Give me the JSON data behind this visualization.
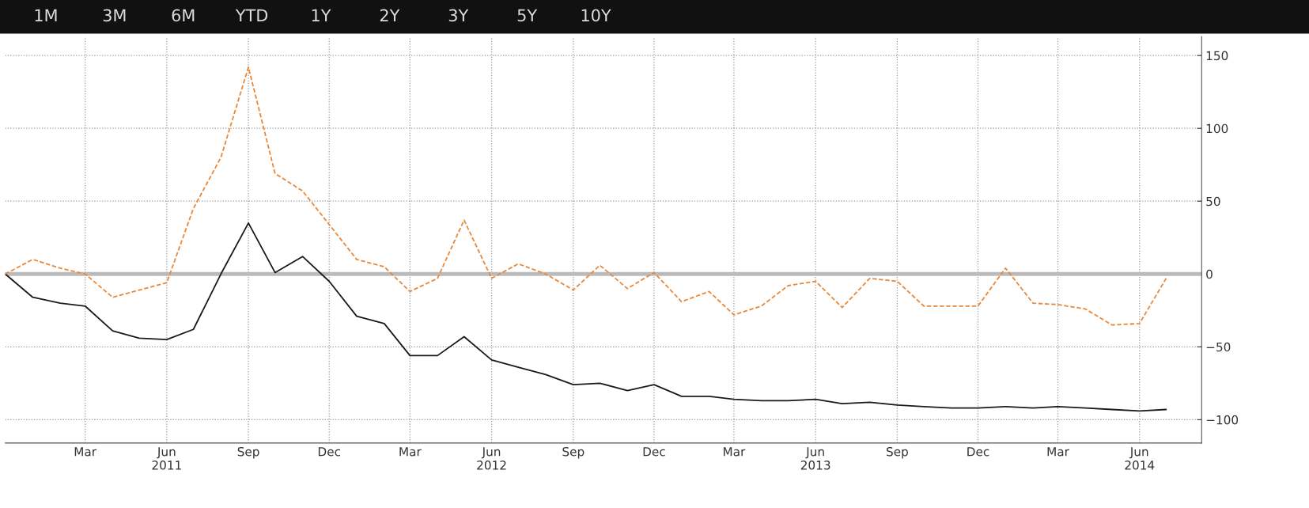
{
  "chart_data": {
    "type": "line",
    "annotations": [
      "1M",
      "3M",
      "6M",
      "YTD",
      "1Y",
      "2Y",
      "3Y",
      "5Y",
      "10Y"
    ],
    "x": [
      "2010-12",
      "2011-01",
      "2011-02",
      "2011-03",
      "2011-04",
      "2011-05",
      "2011-06",
      "2011-07",
      "2011-08",
      "2011-09",
      "2011-10",
      "2011-11",
      "2011-12",
      "2012-01",
      "2012-02",
      "2012-03",
      "2012-04",
      "2012-05",
      "2012-06",
      "2012-07",
      "2012-08",
      "2012-09",
      "2012-10",
      "2012-11",
      "2012-12",
      "2013-01",
      "2013-02",
      "2013-03",
      "2013-04",
      "2013-05",
      "2013-06",
      "2013-07",
      "2013-08",
      "2013-09",
      "2013-10",
      "2013-11",
      "2013-12",
      "2014-01",
      "2014-02",
      "2014-03",
      "2014-04",
      "2014-05",
      "2014-06",
      "2014-07"
    ],
    "series": [
      {
        "color": "#1a1a1a",
        "line_style": "solid",
        "values": [
          0,
          -16,
          -20,
          -22,
          -39,
          -44,
          -45,
          -38,
          0,
          35,
          1,
          12,
          -5,
          -29,
          -34,
          -56,
          -56,
          -43,
          -59,
          -64,
          -69,
          -76,
          -75,
          -80,
          -76,
          -84,
          -84,
          -86,
          -87,
          -87,
          -86,
          -89,
          -88,
          -90,
          -91,
          -92,
          -92,
          -91,
          -92,
          -91,
          -92,
          -93,
          -94,
          -93
        ]
      },
      {
        "color": "#e8883a",
        "line_style": "dashed",
        "values": [
          0,
          10,
          4,
          0,
          -16,
          -11,
          -6,
          45,
          80,
          142,
          69,
          57,
          34,
          10,
          5,
          -12,
          -3,
          37,
          -3,
          7,
          0,
          -11,
          6,
          -10,
          1,
          -19,
          -12,
          -28,
          -22,
          -8,
          -5,
          -23,
          -3,
          -5,
          -22,
          -22,
          -22,
          4,
          -20,
          -21,
          -24,
          -35,
          -34,
          -3
        ]
      }
    ],
    "xlim": [
      "2010-12-01",
      "2014-08-10"
    ],
    "xticks": [
      {
        "value": "2011-03",
        "label": "Mar"
      },
      {
        "value": "2011-06",
        "label": "Jun\n2011"
      },
      {
        "value": "2011-09",
        "label": "Sep"
      },
      {
        "value": "2011-12",
        "label": "Dec"
      },
      {
        "value": "2012-03",
        "label": "Mar"
      },
      {
        "value": "2012-06",
        "label": "Jun\n2012"
      },
      {
        "value": "2012-09",
        "label": "Sep"
      },
      {
        "value": "2012-12",
        "label": "Dec"
      },
      {
        "value": "2013-03",
        "label": "Mar"
      },
      {
        "value": "2013-06",
        "label": "Jun\n2013"
      },
      {
        "value": "2013-09",
        "label": "Sep"
      },
      {
        "value": "2013-12",
        "label": "Dec"
      },
      {
        "value": "2014-03",
        "label": "Mar"
      },
      {
        "value": "2014-06",
        "label": "Jun\n2014"
      }
    ],
    "ylim": [
      -116,
      163
    ],
    "yticks": [
      -100,
      -50,
      0,
      50,
      100,
      150
    ],
    "grid": true,
    "ref_lines": [
      {
        "axis": "y",
        "value": 0,
        "color": "#bbbbbb"
      }
    ]
  }
}
